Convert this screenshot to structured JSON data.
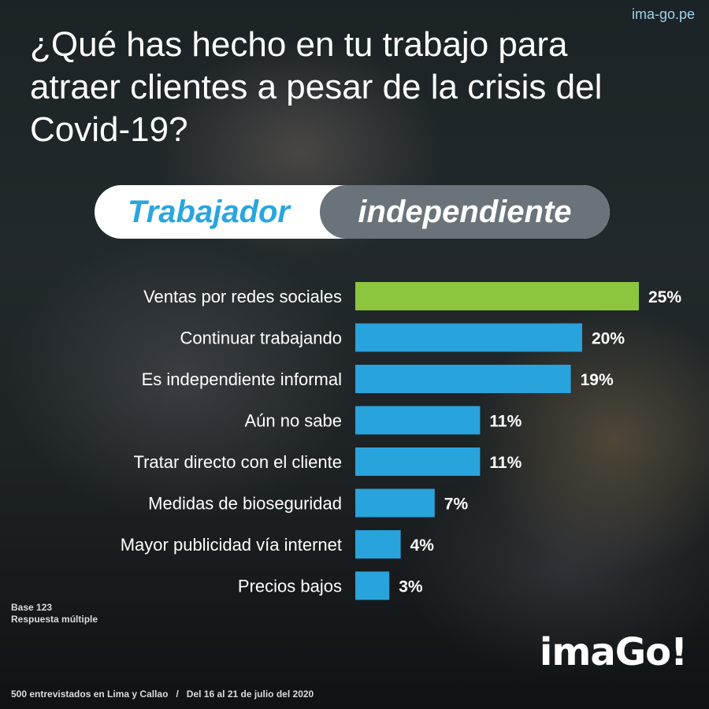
{
  "site": "ima-go.pe",
  "title": "¿Qué has hecho en tu trabajo para atraer clientes a pesar de la crisis del Covid-19?",
  "segment": {
    "left": "Trabajador",
    "right": "independiente"
  },
  "notes": {
    "base": "Base 123",
    "type": "Respuesta múltiple"
  },
  "footer": {
    "sample": "500 entrevistados en Lima y Callao",
    "separator": "/",
    "dates": "Del 16 al 21 de julio del 2020"
  },
  "logo": "imaGo!",
  "colors": {
    "highlight": "#8cc63f",
    "bar": "#29a3dc",
    "accent_text": "#2aa6dc",
    "pill_grey": "#6a737a"
  },
  "chart_data": {
    "type": "bar",
    "orientation": "horizontal",
    "title": "¿Qué has hecho en tu trabajo para atraer clientes a pesar de la crisis del Covid-19?",
    "categories": [
      "Ventas por redes sociales",
      "Continuar trabajando",
      "Es independiente informal",
      "Aún no sabe",
      "Tratar directo con el cliente",
      "Medidas de bioseguridad",
      "Mayor publicidad vía internet",
      "Precios bajos"
    ],
    "values": [
      25,
      20,
      19,
      11,
      11,
      7,
      4,
      3
    ],
    "value_labels": [
      "25%",
      "20%",
      "19%",
      "11%",
      "11%",
      "7%",
      "4%",
      "3%"
    ],
    "unit": "%",
    "highlight_index": 0,
    "xlim": [
      0,
      25
    ],
    "grid": false,
    "legend": "none"
  }
}
